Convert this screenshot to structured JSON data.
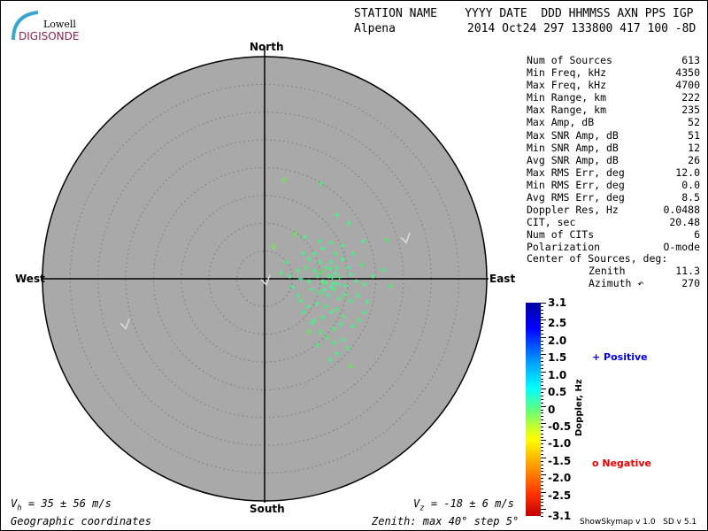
{
  "logo": {
    "text_top": "Lowell",
    "text_bottom": "DIGISONDE"
  },
  "header": {
    "labels": "STATION NAME    YYYY DATE  DDD HHMMSS AXN PPS IGP",
    "station": "Alpena",
    "values": "2014 Oct24 297 133800 417 100 -8D"
  },
  "directions": {
    "north": "North",
    "south": "South",
    "east": "East",
    "west": "West"
  },
  "stats": [
    {
      "label": "Num of Sources",
      "value": "613"
    },
    {
      "label": "Min Freq, kHz",
      "value": "4350"
    },
    {
      "label": "Max Freq, kHz",
      "value": "4700"
    },
    {
      "label": "Min Range, km",
      "value": "222"
    },
    {
      "label": "Max Range, km",
      "value": "235"
    },
    {
      "label": "Max Amp, dB",
      "value": "52"
    },
    {
      "label": "Max SNR Amp, dB",
      "value": "51"
    },
    {
      "label": "Min SNR Amp, dB",
      "value": "12"
    },
    {
      "label": "Avg SNR Amp, dB",
      "value": "26"
    },
    {
      "label": "Max RMS Err, deg",
      "value": "12.0"
    },
    {
      "label": "Min RMS Err, deg",
      "value": "0.0"
    },
    {
      "label": "Avg RMS Err, deg",
      "value": "8.5"
    },
    {
      "label": "Doppler Res, Hz",
      "value": "0.0488"
    },
    {
      "label": "CIT, sec",
      "value": "20.48"
    },
    {
      "label": "Num of CITs",
      "value": "6"
    },
    {
      "label": "Polarization",
      "value": "O-mode"
    }
  ],
  "center": {
    "title": "Center of Sources, deg:",
    "zenith_label": "Zenith",
    "zenith": "11.3",
    "azimuth_label": "Azimuth",
    "azimuth": "270"
  },
  "colorbar": {
    "title": "Doppler, Hz",
    "ticks": [
      "3.1",
      "2.5",
      "2.0",
      "1.5",
      "1.0",
      "0.5",
      "0",
      "-0.5",
      "-1.0",
      "-1.5",
      "-2.0",
      "-2.5",
      "-3.1"
    ],
    "range": [
      -3.1,
      3.1
    ]
  },
  "legend": {
    "positive": "Positive",
    "negative": "Negative",
    "positive_color": "#0000ee",
    "negative_color": "#ee0000"
  },
  "footer": {
    "vh": "= 35 ± 56 m/s",
    "vz": "= -18 ± 6 m/s",
    "coords": "Geographic coordinates",
    "zenith": "Zenith: max 40°  step 5°",
    "version": "ShowSkymap v 1.0   SD v 5.1"
  },
  "skymap": {
    "max_zenith_deg": 40,
    "step_deg": 5,
    "disk_color": "#a9a9a9",
    "sources": [
      [
        3.5,
        17.8,
        -0.3
      ],
      [
        10.1,
        17.1,
        0.4
      ],
      [
        13.1,
        11.5,
        0.6
      ],
      [
        15.2,
        10.0,
        0.5
      ],
      [
        22.0,
        7.0,
        0.3
      ],
      [
        17.8,
        6.8,
        0.6
      ],
      [
        21.4,
        1.6,
        0.5
      ],
      [
        22.7,
        -1.3,
        0.4
      ],
      [
        11.8,
        -14.6,
        0.5
      ],
      [
        1.6,
        5.8,
        -0.3
      ],
      [
        18.5,
        -4.2,
        0.6
      ],
      [
        17.0,
        -7.5,
        0.5
      ],
      [
        5.5,
        8.0,
        -0.2
      ],
      [
        7.2,
        7.5,
        0.6
      ],
      [
        4.0,
        3.0,
        0.5
      ],
      [
        3.0,
        1.0,
        0.5
      ],
      [
        5.0,
        -1.5,
        0.6
      ],
      [
        6.5,
        -4.0,
        0.4
      ],
      [
        7.0,
        -6.0,
        0.5
      ],
      [
        8.5,
        -8.0,
        0.6
      ],
      [
        10.0,
        -9.5,
        0.5
      ],
      [
        12.5,
        -9.0,
        0.4
      ],
      [
        14.0,
        -11.0,
        0.6
      ],
      [
        15.0,
        -12.5,
        0.5
      ],
      [
        9.5,
        -12.0,
        0.4
      ],
      [
        13.0,
        -13.5,
        0.6
      ],
      [
        16.0,
        -8.5,
        0.5
      ],
      [
        18.0,
        -1.0,
        0.6
      ],
      [
        19.5,
        0.5,
        0.5
      ],
      [
        17.5,
        2.5,
        0.4
      ],
      [
        16.0,
        4.5,
        0.6
      ],
      [
        14.0,
        6.0,
        0.5
      ],
      [
        12.0,
        6.5,
        0.4
      ],
      [
        10.5,
        5.5,
        0.6
      ],
      [
        9.0,
        4.5,
        0.5
      ],
      [
        8.0,
        3.5,
        0.6
      ],
      [
        7.5,
        2.0,
        0.4
      ],
      [
        6.0,
        1.5,
        0.5
      ],
      [
        6.5,
        0.0,
        0.6
      ],
      [
        8.0,
        -0.5,
        0.5
      ],
      [
        9.5,
        0.5,
        0.4
      ],
      [
        10.5,
        -0.5,
        0.6
      ],
      [
        11.5,
        0.5,
        0.5
      ],
      [
        12.5,
        -0.8,
        0.6
      ],
      [
        13.5,
        0.3,
        0.4
      ],
      [
        14.5,
        -1.2,
        0.5
      ],
      [
        15.5,
        0.8,
        0.6
      ],
      [
        16.5,
        -0.5,
        0.5
      ],
      [
        11.0,
        2.0,
        0.4
      ],
      [
        12.0,
        3.0,
        0.6
      ],
      [
        13.0,
        2.0,
        0.5
      ],
      [
        14.0,
        3.5,
        0.6
      ],
      [
        10.0,
        3.0,
        0.5
      ],
      [
        9.0,
        1.5,
        0.4
      ],
      [
        8.5,
        -2.0,
        0.6
      ],
      [
        10.0,
        -2.5,
        0.5
      ],
      [
        11.5,
        -3.0,
        0.6
      ],
      [
        12.5,
        -2.0,
        0.4
      ],
      [
        13.5,
        -3.5,
        0.5
      ],
      [
        14.5,
        -2.8,
        0.6
      ],
      [
        15.5,
        -4.0,
        0.5
      ],
      [
        11.0,
        -5.0,
        0.4
      ],
      [
        12.0,
        -6.0,
        0.6
      ],
      [
        13.0,
        -5.5,
        0.5
      ],
      [
        9.5,
        -4.5,
        0.6
      ],
      [
        10.5,
        -7.0,
        0.5
      ],
      [
        12.0,
        -1.5,
        0.7
      ],
      [
        11.0,
        -0.8,
        0.3
      ],
      [
        12.8,
        1.0,
        0.8
      ],
      [
        10.2,
        1.2,
        0.2
      ],
      [
        13.2,
        -1.0,
        0.7
      ],
      [
        11.8,
        1.8,
        0.5
      ],
      [
        7.0,
        4.5,
        0.6
      ],
      [
        9.8,
        6.8,
        0.5
      ],
      [
        12.8,
        4.5,
        0.4
      ],
      [
        15.0,
        2.0,
        0.6
      ],
      [
        16.8,
        -3.0,
        0.5
      ],
      [
        14.2,
        -6.8,
        0.4
      ],
      [
        8.0,
        -9.5,
        -0.2
      ],
      [
        15.5,
        -15.8,
        -0.2
      ],
      [
        18.0,
        -6.0,
        0.5
      ],
      [
        6.0,
        -3.0,
        0.5
      ],
      [
        4.5,
        0.5,
        0.6
      ],
      [
        7.8,
        -5.0,
        0.5
      ],
      [
        11.2,
        -10.5,
        0.4
      ],
      [
        12.5,
        -11.5,
        0.5
      ],
      [
        9.0,
        -7.5,
        0.6
      ],
      [
        13.8,
        -8.2,
        0.5
      ],
      [
        10.8,
        -2.0,
        0.6
      ],
      [
        12.2,
        0.2,
        0.5
      ]
    ]
  },
  "wind_marks": [
    [
      -25,
      -8.5
    ],
    [
      0.3,
      -0.6
    ],
    [
      25.5,
      7.0
    ]
  ]
}
